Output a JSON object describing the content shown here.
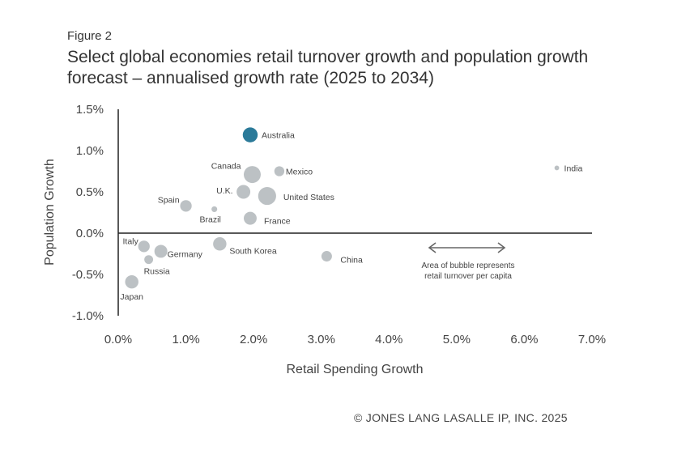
{
  "figure_label": "Figure 2",
  "title": "Select global economies retail turnover growth and population growth forecast – annualised growth rate (2025 to 2034)",
  "copyright": "© JONES LANG LASALLE IP, INC. 2025",
  "chart_data": {
    "type": "scatter",
    "bubble": true,
    "xlabel": "Retail Spending Growth",
    "ylabel": "Population Growth",
    "xlim": [
      0.0,
      7.0
    ],
    "ylim": [
      -1.0,
      1.5
    ],
    "x_ticks": [
      "0.0%",
      "1.0%",
      "2.0%",
      "3.0%",
      "4.0%",
      "5.0%",
      "6.0%",
      "7.0%"
    ],
    "y_ticks": [
      "1.5%",
      "1.0%",
      "0.5%",
      "0.0%",
      "-0.5%",
      "-1.0%"
    ],
    "grid": false,
    "annotation": [
      "Area of bubble represents",
      "retail turnover per capita"
    ],
    "colors": {
      "default": "#bcc1c4",
      "highlight": "#2b7a99"
    },
    "points": [
      {
        "label": "Australia",
        "x": 1.95,
        "y": 1.19,
        "size": 1.0,
        "highlight": true
      },
      {
        "label": "Canada",
        "x": 1.98,
        "y": 0.71,
        "size": 1.3
      },
      {
        "label": "Mexico",
        "x": 2.38,
        "y": 0.75,
        "size": 0.45
      },
      {
        "label": "India",
        "x": 6.48,
        "y": 0.79,
        "size": 0.1
      },
      {
        "label": "U.K.",
        "x": 1.85,
        "y": 0.5,
        "size": 0.85
      },
      {
        "label": "United States",
        "x": 2.2,
        "y": 0.45,
        "size": 1.45
      },
      {
        "label": "Spain",
        "x": 1.0,
        "y": 0.33,
        "size": 0.6
      },
      {
        "label": "Brazil",
        "x": 1.42,
        "y": 0.29,
        "size": 0.15
      },
      {
        "label": "France",
        "x": 1.95,
        "y": 0.18,
        "size": 0.75
      },
      {
        "label": "Italy",
        "x": 0.38,
        "y": -0.16,
        "size": 0.6
      },
      {
        "label": "Germany",
        "x": 0.63,
        "y": -0.22,
        "size": 0.75
      },
      {
        "label": "South Korea",
        "x": 1.5,
        "y": -0.13,
        "size": 0.8
      },
      {
        "label": "China",
        "x": 3.08,
        "y": -0.28,
        "size": 0.5
      },
      {
        "label": "Russia",
        "x": 0.45,
        "y": -0.32,
        "size": 0.35
      },
      {
        "label": "Japan",
        "x": 0.2,
        "y": -0.59,
        "size": 0.8
      }
    ]
  }
}
